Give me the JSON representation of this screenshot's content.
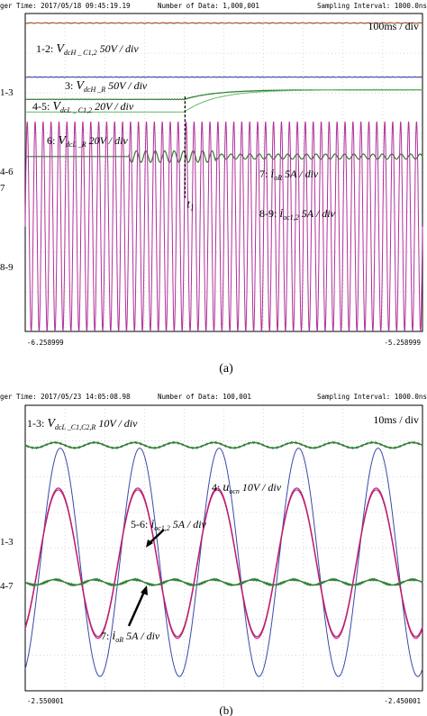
{
  "chart_data": [
    {
      "type": "line",
      "panel_label": "(a)",
      "header": {
        "trigger_time": "ger Time: 2017/05/18 09:45:19.19",
        "num_data": "Number of Data: 1,000,001",
        "sampling": "Sampling Interval:   1000.0ns"
      },
      "timescale": "100ms / div",
      "x_start_label": "-6.258999",
      "x_end_label": "-5.258999",
      "t1_label": "t",
      "t1_sub": "1",
      "markers": [
        "1-3",
        "4-6",
        "7",
        "8-9"
      ],
      "labels": [
        {
          "id": "1-2",
          "prefix": "1-2: ",
          "var": "V",
          "sub": "dcH _ C1,2",
          "scale": " 50V / div"
        },
        {
          "id": "3",
          "prefix": "3: ",
          "var": "V",
          "sub": "dcH _R",
          "scale": " 50V / div"
        },
        {
          "id": "4-5",
          "prefix": "4-5: ",
          "var": "V",
          "sub": "dcL _ C1,2",
          "scale": " 20V / div"
        },
        {
          "id": "6",
          "prefix": "6: ",
          "var": "V",
          "sub": "dcL _R",
          "scale": " 20V / div"
        },
        {
          "id": "7",
          "prefix": "7: ",
          "var": "i",
          "sub": "oR",
          "scale": " 5A / div"
        },
        {
          "id": "8-9",
          "prefix": "8-9: ",
          "var": "i",
          "sub": "oc1,2",
          "scale": " 5A / div"
        }
      ],
      "series": [
        {
          "color": "#a0522d",
          "desc": "constant",
          "level": 0.97
        },
        {
          "color": "#3949ab",
          "desc": "constant",
          "level": 0.8
        },
        {
          "color": "#2e7d32",
          "desc": "step-up",
          "level_before": 0.73,
          "level_after": 0.76,
          "step_at": 0.4
        },
        {
          "color": "#2e7d32",
          "desc": "ripple after t1",
          "level": 0.55,
          "step_at": 0.4
        },
        {
          "color": "#b0309a",
          "desc": "sinusoid",
          "cycles": 50,
          "amplitude": 0.33,
          "center": 0.33
        }
      ]
    },
    {
      "type": "line",
      "panel_label": "(b)",
      "header": {
        "trigger_time": "ger Time: 2017/05/23 14:05:08.98",
        "num_data": "Number of Data: 100,001",
        "sampling": "Sampling Interval:   1000.0ns"
      },
      "timescale": "10ms / div",
      "x_start_label": "-2.550001",
      "x_end_label": "-2.450001",
      "markers": [
        "1-3",
        "4-7"
      ],
      "labels": [
        {
          "id": "1-3",
          "prefix": "1-3: ",
          "var": "V",
          "sub": "dcL _C1,C2,R",
          "scale": " 10V / div"
        },
        {
          "id": "4",
          "prefix": "4: ",
          "var": "u",
          "sub": "ocn",
          "scale": " 10V / div"
        },
        {
          "id": "5-6",
          "prefix": "5-6: ",
          "var": "i",
          "sub": "oc1,2",
          "scale": " 5A / div"
        },
        {
          "id": "7",
          "prefix": "7: ",
          "var": "i",
          "sub": "oR",
          "scale": " 5A / div"
        }
      ],
      "series": [
        {
          "color": "#2e7d32",
          "desc": "ripple dc",
          "level": 0.86
        },
        {
          "color": "#3949ab",
          "desc": "sinusoid",
          "cycles": 5,
          "amplitude": 0.4,
          "center": 0.45
        },
        {
          "color": "#b0309a",
          "desc": "sinusoid",
          "cycles": 5,
          "amplitude": 0.26,
          "center": 0.45
        },
        {
          "color": "#2e7d32",
          "desc": "ripple",
          "level": 0.38
        }
      ]
    }
  ]
}
